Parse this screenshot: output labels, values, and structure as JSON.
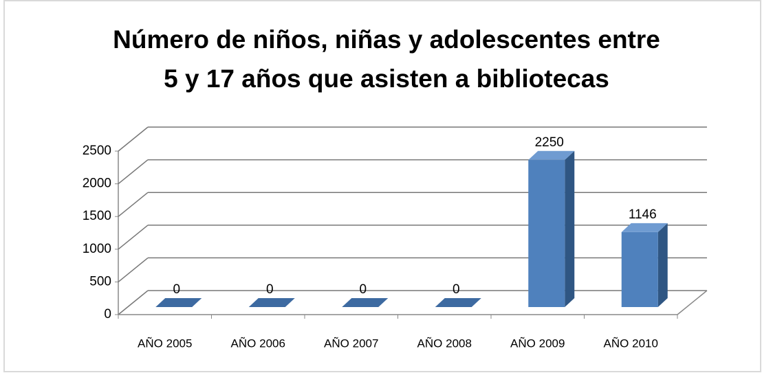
{
  "chart_data": {
    "type": "bar3d",
    "title": [
      "Número de niños, niñas y adolescentes entre",
      "5 y 17 años que asisten a bibliotecas"
    ],
    "categories": [
      "AÑO 2005",
      "AÑO 2006",
      "AÑO 2007",
      "AÑO 2008",
      "AÑO 2009",
      "AÑO 2010"
    ],
    "values": [
      0,
      0,
      0,
      0,
      2250,
      1146
    ],
    "color": "#4f81bd",
    "ylim": [
      0,
      2500
    ],
    "yticks": [
      0,
      500,
      1000,
      1500,
      2000,
      2500
    ],
    "grid": true
  }
}
